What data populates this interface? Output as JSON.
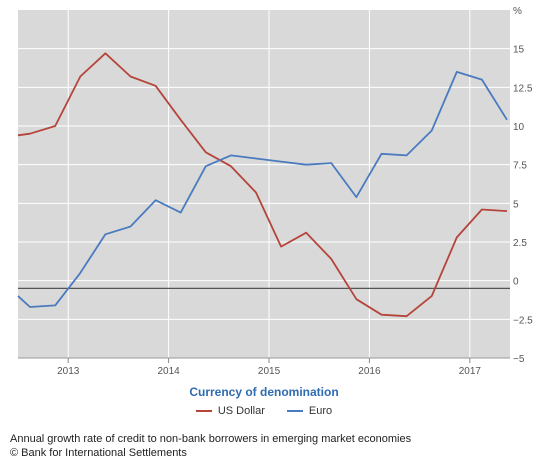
{
  "chart_data": {
    "type": "line",
    "unit_label": "%",
    "ylim": [
      -5,
      17.5
    ],
    "yticks": [
      -5,
      -2.5,
      0,
      2.5,
      5,
      7.5,
      10,
      12.5,
      15
    ],
    "ytick_labels": [
      "−5",
      "−2.5",
      "0",
      "2.5",
      "5",
      "7.5",
      "10",
      "12.5",
      "15"
    ],
    "xlim": [
      2012.5,
      2017.4
    ],
    "xticks": [
      2013,
      2014,
      2015,
      2016,
      2017
    ],
    "xtick_labels": [
      "2013",
      "2014",
      "2015",
      "2016",
      "2017"
    ],
    "grid": true,
    "background_color": "#d9d9d9",
    "series": [
      {
        "name": "US Dollar",
        "color": "#b5443b",
        "x": [
          2012.5,
          2012.62,
          2012.87,
          2013.12,
          2013.37,
          2013.62,
          2013.87,
          2014.12,
          2014.37,
          2014.62,
          2014.87,
          2015.12,
          2015.37,
          2015.62,
          2015.87,
          2016.12,
          2016.37,
          2016.62,
          2016.87,
          2017.12,
          2017.37
        ],
        "y": [
          9.4,
          9.5,
          10.0,
          13.2,
          14.7,
          13.2,
          12.6,
          10.4,
          8.3,
          7.4,
          5.7,
          2.2,
          3.1,
          1.4,
          -1.2,
          -2.2,
          -2.3,
          -1.0,
          2.8,
          4.6,
          4.5
        ]
      },
      {
        "name": "Euro",
        "color": "#4a7bbf",
        "x": [
          2012.5,
          2012.62,
          2012.87,
          2013.12,
          2013.37,
          2013.62,
          2013.87,
          2014.12,
          2014.37,
          2014.62,
          2014.87,
          2015.12,
          2015.37,
          2015.62,
          2015.87,
          2016.12,
          2016.37,
          2016.62,
          2016.87,
          2017.12,
          2017.37
        ],
        "y": [
          -1.0,
          -1.7,
          -1.6,
          0.5,
          3.0,
          3.5,
          5.2,
          4.4,
          7.4,
          8.1,
          7.9,
          7.7,
          7.5,
          7.6,
          5.4,
          8.2,
          8.1,
          9.7,
          13.5,
          13.0,
          10.4
        ]
      }
    ],
    "reference_line": {
      "y": -0.5,
      "color": "#555555"
    },
    "legend_title": "Currency of denomination",
    "legend_placement": "bottom"
  },
  "caption": {
    "line1": "Annual growth rate of credit to non-bank borrowers in emerging market economies",
    "line2": "© Bank for International Settlements"
  }
}
